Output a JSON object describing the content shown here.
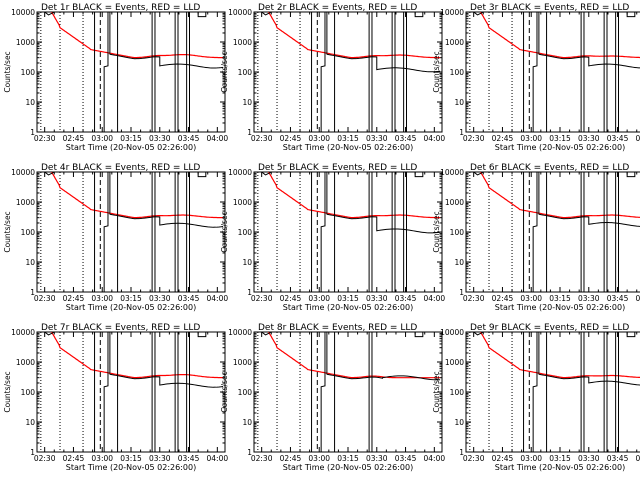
{
  "page": {
    "background": "#ffffff",
    "event_color": "#000000",
    "lld_color": "#ff0000"
  },
  "chart_data": [
    {
      "id": "1r",
      "title": "Det 1r BLACK = Events, RED = LLD",
      "type": "line",
      "xlabel": "Start Time (20-Nov-05 02:26:00)",
      "ylabel": "Counts/sec",
      "xticks": [
        "02:30",
        "02:45",
        "03:00",
        "03:15",
        "03:30",
        "03:45",
        "04:00"
      ],
      "yticks": [
        "1",
        "10",
        "100",
        "1000",
        "10000"
      ],
      "ylim": [
        1,
        10000
      ],
      "xlim": [
        -4,
        94
      ],
      "events_low": 160,
      "bump": 1.6,
      "dip_end": 60,
      "spikes": [
        56,
        68,
        74
      ]
    },
    {
      "id": "2r",
      "title": "Det 2r BLACK = Events, RED = LLD",
      "type": "line",
      "xlabel": "Start Time (20-Nov-05 02:26:00)",
      "ylabel": "Counts/sec",
      "xticks": [
        "02:30",
        "02:45",
        "03:00",
        "03:15",
        "03:30",
        "03:45",
        "04:00"
      ],
      "yticks": [
        "1",
        "10",
        "100",
        "1000",
        "10000"
      ],
      "ylim": [
        1,
        10000
      ],
      "xlim": [
        -4,
        94
      ],
      "events_low": 120,
      "bump": 1.5,
      "dip_end": 60,
      "spikes": [
        56,
        68,
        74
      ]
    },
    {
      "id": "3r",
      "title": "Det 3r BLACK = Events, RED = LLD",
      "type": "line",
      "xlabel": "Start Time (20-Nov-05 02:26:00)",
      "ylabel": "Counts/sec",
      "xticks": [
        "02:30",
        "02:45",
        "03:00",
        "03:15",
        "03:30",
        "03:45",
        "04:00"
      ],
      "yticks": [
        "1",
        "10",
        "100",
        "1000",
        "10000"
      ],
      "ylim": [
        1,
        10000
      ],
      "xlim": [
        -4,
        94
      ],
      "events_low": 160,
      "bump": 1.3,
      "dip_end": 60,
      "spikes": [
        56,
        68,
        74
      ]
    },
    {
      "id": "4r",
      "title": "Det 4r BLACK = Events, RED = LLD",
      "type": "line",
      "xlabel": "Start Time (20-Nov-05 02:26:00)",
      "ylabel": "Counts/sec",
      "xticks": [
        "02:30",
        "02:45",
        "03:00",
        "03:15",
        "03:30",
        "03:45",
        "04:00"
      ],
      "yticks": [
        "1",
        "10",
        "100",
        "1000",
        "10000"
      ],
      "ylim": [
        1,
        10000
      ],
      "xlim": [
        -4,
        94
      ],
      "events_low": 170,
      "bump": 1.5,
      "dip_end": 60,
      "spikes": [
        56,
        68,
        74
      ]
    },
    {
      "id": "5r",
      "title": "Det 5r BLACK = Events, RED = LLD",
      "type": "line",
      "xlabel": "Start Time (20-Nov-05 02:26:00)",
      "ylabel": "Counts/sec",
      "xticks": [
        "02:30",
        "02:45",
        "03:00",
        "03:15",
        "03:30",
        "03:45",
        "04:00"
      ],
      "yticks": [
        "1",
        "10",
        "100",
        "1000",
        "10000"
      ],
      "ylim": [
        1,
        10000
      ],
      "xlim": [
        -4,
        94
      ],
      "events_low": 110,
      "bump": 1.5,
      "dip_end": 60,
      "spikes": [
        56,
        68,
        74
      ]
    },
    {
      "id": "6r",
      "title": "Det 6r BLACK = Events, RED = LLD",
      "type": "line",
      "xlabel": "Start Time (20-Nov-05 02:26:00)",
      "ylabel": "Counts/sec",
      "xticks": [
        "02:30",
        "02:45",
        "03:00",
        "03:15",
        "03:30",
        "03:45",
        "04:00"
      ],
      "yticks": [
        "1",
        "10",
        "100",
        "1000",
        "10000"
      ],
      "ylim": [
        1,
        10000
      ],
      "xlim": [
        -4,
        94
      ],
      "events_low": 180,
      "bump": 1.5,
      "dip_end": 60,
      "spikes": [
        56,
        68,
        74
      ]
    },
    {
      "id": "7r",
      "title": "Det 7r BLACK = Events, RED = LLD",
      "type": "line",
      "xlabel": "Start Time (20-Nov-05 02:26:00)",
      "ylabel": "Counts/sec",
      "xticks": [
        "02:30",
        "02:45",
        "03:00",
        "03:15",
        "03:30",
        "03:45",
        "04:00"
      ],
      "yticks": [
        "1",
        "10",
        "100",
        "1000",
        "10000"
      ],
      "ylim": [
        1,
        10000
      ],
      "xlim": [
        -4,
        94
      ],
      "events_low": 170,
      "bump": 1.6,
      "dip_end": 60,
      "spikes": [
        56,
        68,
        74
      ]
    },
    {
      "id": "8r",
      "title": "Det 8r BLACK = Events, RED = LLD",
      "type": "line",
      "xlabel": "Start Time (20-Nov-05 02:26:00)",
      "ylabel": "Counts/sec",
      "xticks": [
        "02:30",
        "02:45",
        "03:00",
        "03:15",
        "03:30",
        "03:45",
        "04:00"
      ],
      "yticks": [
        "1",
        "10",
        "100",
        "1000",
        "10000"
      ],
      "ylim": [
        1,
        10000
      ],
      "xlim": [
        -4,
        94
      ],
      "events_low": 300,
      "bump": 1.0,
      "dip_end": 63,
      "spikes": [
        56
      ]
    },
    {
      "id": "9r",
      "title": "Det 9r BLACK = Events, RED = LLD",
      "type": "line",
      "xlabel": "Start Time (20-Nov-05 02:26:00)",
      "ylabel": "Counts/sec",
      "xticks": [
        "02:30",
        "02:45",
        "03:00",
        "03:15",
        "03:30",
        "03:45",
        "04:00"
      ],
      "yticks": [
        "1",
        "10",
        "100",
        "1000",
        "10000"
      ],
      "ylim": [
        1,
        10000
      ],
      "xlim": [
        -4,
        94
      ],
      "events_low": 200,
      "bump": 1.4,
      "dip_end": 60,
      "spikes": [
        56,
        68,
        74
      ]
    }
  ]
}
